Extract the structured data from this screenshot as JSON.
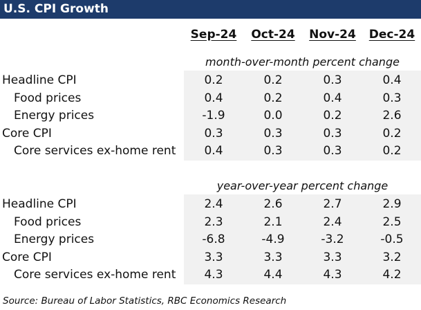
{
  "title": "U.S. CPI Growth",
  "columns": [
    "Sep-24",
    "Oct-24",
    "Nov-24",
    "Dec-24"
  ],
  "sections": [
    {
      "subtitle": "month-over-month percent change",
      "rows": [
        {
          "label": "Headline CPI",
          "indent": 0,
          "values": [
            "0.2",
            "0.2",
            "0.3",
            "0.4"
          ]
        },
        {
          "label": "Food prices",
          "indent": 1,
          "values": [
            "0.4",
            "0.2",
            "0.4",
            "0.3"
          ]
        },
        {
          "label": "Energy prices",
          "indent": 1,
          "values": [
            "-1.9",
            "0.0",
            "0.2",
            "2.6"
          ]
        },
        {
          "label": "Core CPI",
          "indent": 0,
          "values": [
            "0.3",
            "0.3",
            "0.3",
            "0.2"
          ]
        },
        {
          "label": "Core services ex-home rent",
          "indent": 1,
          "values": [
            "0.4",
            "0.3",
            "0.3",
            "0.2"
          ]
        }
      ]
    },
    {
      "subtitle": "year-over-year percent change",
      "rows": [
        {
          "label": "Headline CPI",
          "indent": 0,
          "values": [
            "2.4",
            "2.6",
            "2.7",
            "2.9"
          ]
        },
        {
          "label": "Food prices",
          "indent": 1,
          "values": [
            "2.3",
            "2.1",
            "2.4",
            "2.5"
          ]
        },
        {
          "label": "Energy prices",
          "indent": 1,
          "values": [
            "-6.8",
            "-4.9",
            "-3.2",
            "-0.5"
          ]
        },
        {
          "label": "Core CPI",
          "indent": 0,
          "values": [
            "3.3",
            "3.3",
            "3.3",
            "3.2"
          ]
        },
        {
          "label": "Core services ex-home rent",
          "indent": 1,
          "values": [
            "4.3",
            "4.4",
            "4.3",
            "4.2"
          ]
        }
      ]
    }
  ],
  "source": "Source:  Bureau of Labor Statistics, RBC Economics Research",
  "colors": {
    "title_bg": "#1d3b6b",
    "title_text": "#ffffff",
    "shade": "#f1f1f1"
  }
}
